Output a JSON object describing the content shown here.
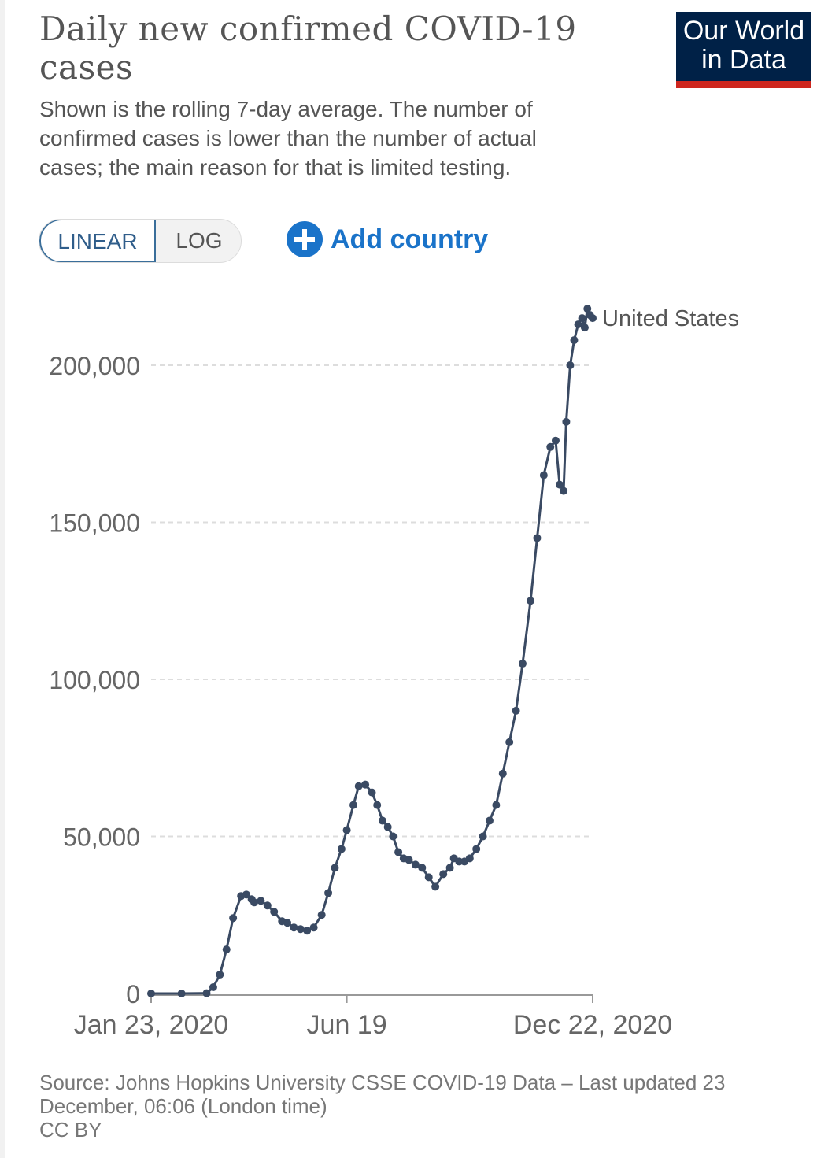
{
  "header": {
    "title": "Daily new confirmed COVID-19 cases",
    "subtitle": "Shown is the rolling 7-day average. The number of confirmed cases is lower than the number of actual cases; the main reason for that is limited testing.",
    "logo_line1": "Our World",
    "logo_line2": "in Data"
  },
  "controls": {
    "linear_label": "LINEAR",
    "log_label": "LOG",
    "add_country_label": "Add country",
    "selected_scale": "linear"
  },
  "colors": {
    "series": "#3a4a63",
    "grid": "#dddddd",
    "accent_blue": "#1a73c9",
    "logo_bg": "#002147",
    "logo_stripe": "#ce261e"
  },
  "chart_data": {
    "type": "line",
    "title": "Daily new confirmed COVID-19 cases",
    "xlabel": "",
    "ylabel": "",
    "y_ticks": [
      0,
      50000,
      100000,
      150000,
      200000
    ],
    "y_tick_labels": [
      "0",
      "50,000",
      "100,000",
      "150,000",
      "200,000"
    ],
    "x_tick_labels": [
      {
        "date": "2020-01-23",
        "label": "Jan 23, 2020"
      },
      {
        "date": "2020-06-19",
        "label": "Jun 19"
      },
      {
        "date": "2020-12-22",
        "label": "Dec 22, 2020"
      }
    ],
    "xlim": [
      "2020-01-23",
      "2020-12-22"
    ],
    "ylim": [
      0,
      220000
    ],
    "grid": "horizontal dashed",
    "legend": "end-of-line label",
    "series": [
      {
        "name": "United States",
        "x": [
          "2020-01-23",
          "2020-02-15",
          "2020-03-05",
          "2020-03-10",
          "2020-03-15",
          "2020-03-20",
          "2020-03-25",
          "2020-03-31",
          "2020-04-04",
          "2020-04-08",
          "2020-04-10",
          "2020-04-15",
          "2020-04-20",
          "2020-04-25",
          "2020-05-01",
          "2020-05-05",
          "2020-05-10",
          "2020-05-15",
          "2020-05-20",
          "2020-05-25",
          "2020-05-31",
          "2020-06-05",
          "2020-06-10",
          "2020-06-15",
          "2020-06-19",
          "2020-06-24",
          "2020-06-28",
          "2020-07-03",
          "2020-07-08",
          "2020-07-12",
          "2020-07-16",
          "2020-07-20",
          "2020-07-24",
          "2020-07-28",
          "2020-08-01",
          "2020-08-05",
          "2020-08-10",
          "2020-08-15",
          "2020-08-20",
          "2020-08-25",
          "2020-08-31",
          "2020-09-05",
          "2020-09-08",
          "2020-09-12",
          "2020-09-16",
          "2020-09-20",
          "2020-09-25",
          "2020-09-30",
          "2020-10-05",
          "2020-10-10",
          "2020-10-15",
          "2020-10-20",
          "2020-10-25",
          "2020-10-30",
          "2020-11-05",
          "2020-11-10",
          "2020-11-15",
          "2020-11-20",
          "2020-11-24",
          "2020-11-27",
          "2020-11-30",
          "2020-12-02",
          "2020-12-05",
          "2020-12-08",
          "2020-12-11",
          "2020-12-14",
          "2020-12-16",
          "2020-12-18",
          "2020-12-20",
          "2020-12-22"
        ],
        "values": [
          0,
          0,
          100,
          2000,
          6000,
          14000,
          24000,
          31000,
          31500,
          30000,
          29000,
          29500,
          28000,
          26000,
          23000,
          22500,
          21000,
          20500,
          20000,
          21000,
          25000,
          32000,
          40000,
          46000,
          52000,
          60000,
          66000,
          66500,
          64000,
          60000,
          55000,
          53000,
          50000,
          45000,
          43000,
          42500,
          41000,
          40000,
          37000,
          34000,
          38000,
          40000,
          43000,
          42000,
          42000,
          43000,
          46000,
          50000,
          55000,
          60000,
          70000,
          80000,
          90000,
          105000,
          125000,
          145000,
          165000,
          174000,
          176000,
          162000,
          160000,
          182000,
          200000,
          208000,
          213000,
          215000,
          212000,
          218000,
          216000,
          215000
        ]
      }
    ]
  },
  "footer": {
    "source": "Source: Johns Hopkins University CSSE COVID-19 Data – Last updated 23 December, 06:06 (London time)",
    "license": "CC BY"
  }
}
